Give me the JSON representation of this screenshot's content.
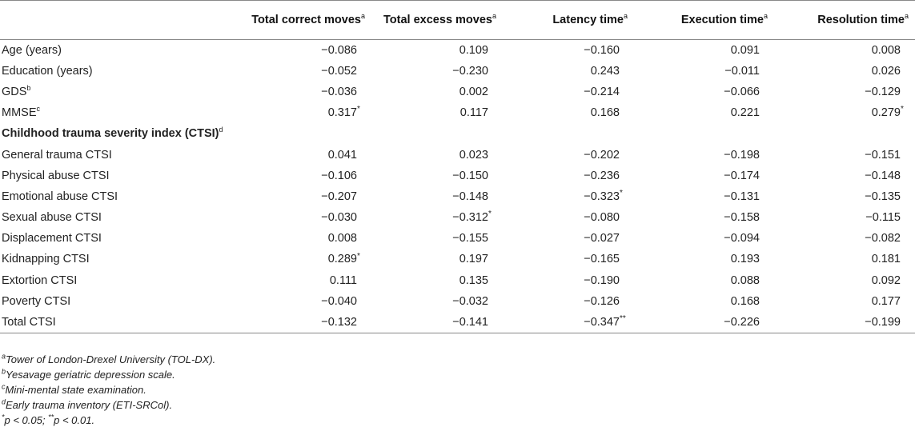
{
  "headers": [
    {
      "text": "",
      "sup": ""
    },
    {
      "text": "Total correct moves",
      "sup": "a"
    },
    {
      "text": "Total excess moves",
      "sup": "a"
    },
    {
      "text": "Latency time",
      "sup": "a"
    },
    {
      "text": "Execution time",
      "sup": "a"
    },
    {
      "text": "Resolution time",
      "sup": "a"
    }
  ],
  "rows": [
    {
      "label": "Age (years)",
      "sup": "",
      "cells": [
        [
          "−0.086",
          ""
        ],
        [
          "0.109",
          ""
        ],
        [
          "−0.160",
          ""
        ],
        [
          "0.091",
          ""
        ],
        [
          "0.008",
          ""
        ]
      ]
    },
    {
      "label": "Education (years)",
      "sup": "",
      "cells": [
        [
          "−0.052",
          ""
        ],
        [
          "−0.230",
          ""
        ],
        [
          "0.243",
          ""
        ],
        [
          "−0.011",
          ""
        ],
        [
          "0.026",
          ""
        ]
      ]
    },
    {
      "label": "GDS",
      "sup": "b",
      "cells": [
        [
          "−0.036",
          ""
        ],
        [
          "0.002",
          ""
        ],
        [
          "−0.214",
          ""
        ],
        [
          "−0.066",
          ""
        ],
        [
          "−0.129",
          ""
        ]
      ]
    },
    {
      "label": "MMSE",
      "sup": "c",
      "cells": [
        [
          "0.317",
          "*"
        ],
        [
          "0.117",
          ""
        ],
        [
          "0.168",
          ""
        ],
        [
          "0.221",
          ""
        ],
        [
          "0.279",
          "*"
        ]
      ]
    },
    {
      "label": "Childhood trauma severity index (CTSI)",
      "sup": "d",
      "section": true,
      "cells": [
        [
          "",
          ""
        ],
        [
          "",
          ""
        ],
        [
          "",
          ""
        ],
        [
          "",
          ""
        ],
        [
          "",
          ""
        ]
      ]
    },
    {
      "label": "General trauma CTSI",
      "sup": "",
      "cells": [
        [
          "0.041",
          ""
        ],
        [
          "0.023",
          ""
        ],
        [
          "−0.202",
          ""
        ],
        [
          "−0.198",
          ""
        ],
        [
          "−0.151",
          ""
        ]
      ]
    },
    {
      "label": "Physical abuse CTSI",
      "sup": "",
      "cells": [
        [
          "−0.106",
          ""
        ],
        [
          "−0.150",
          ""
        ],
        [
          "−0.236",
          ""
        ],
        [
          "−0.174",
          ""
        ],
        [
          "−0.148",
          ""
        ]
      ]
    },
    {
      "label": "Emotional abuse CTSI",
      "sup": "",
      "cells": [
        [
          "−0.207",
          ""
        ],
        [
          "−0.148",
          ""
        ],
        [
          "−0.323",
          "*"
        ],
        [
          "−0.131",
          ""
        ],
        [
          "−0.135",
          ""
        ]
      ]
    },
    {
      "label": "Sexual abuse CTSI",
      "sup": "",
      "cells": [
        [
          "−0.030",
          ""
        ],
        [
          "−0.312",
          "*"
        ],
        [
          "−0.080",
          ""
        ],
        [
          "−0.158",
          ""
        ],
        [
          "−0.115",
          ""
        ]
      ]
    },
    {
      "label": "Displacement CTSI",
      "sup": "",
      "cells": [
        [
          "0.008",
          ""
        ],
        [
          "−0.155",
          ""
        ],
        [
          "−0.027",
          ""
        ],
        [
          "−0.094",
          ""
        ],
        [
          "−0.082",
          ""
        ]
      ]
    },
    {
      "label": "Kidnapping CTSI",
      "sup": "",
      "cells": [
        [
          "0.289",
          "*"
        ],
        [
          "0.197",
          ""
        ],
        [
          "−0.165",
          ""
        ],
        [
          "0.193",
          ""
        ],
        [
          "0.181",
          ""
        ]
      ]
    },
    {
      "label": "Extortion CTSI",
      "sup": "",
      "cells": [
        [
          "0.111",
          ""
        ],
        [
          "0.135",
          ""
        ],
        [
          "−0.190",
          ""
        ],
        [
          "0.088",
          ""
        ],
        [
          "0.092",
          ""
        ]
      ]
    },
    {
      "label": "Poverty CTSI",
      "sup": "",
      "cells": [
        [
          "−0.040",
          ""
        ],
        [
          "−0.032",
          ""
        ],
        [
          "−0.126",
          ""
        ],
        [
          "0.168",
          ""
        ],
        [
          "0.177",
          ""
        ]
      ]
    },
    {
      "label": "Total CTSI",
      "sup": "",
      "cells": [
        [
          "−0.132",
          ""
        ],
        [
          "−0.141",
          ""
        ],
        [
          "−0.347",
          "**"
        ],
        [
          "−0.226",
          ""
        ],
        [
          "−0.199",
          ""
        ]
      ]
    }
  ],
  "footnotes": [
    {
      "sup": "a",
      "text": "Tower of London-Drexel University (TOL-DX)."
    },
    {
      "sup": "b",
      "text": "Yesavage geriatric depression scale."
    },
    {
      "sup": "c",
      "text": "Mini-mental state examination."
    },
    {
      "sup": "d",
      "text": "Early trauma inventory (ETI-SRCol)."
    }
  ],
  "significance": {
    "s1_mark": "*",
    "s1_text": "p < 0.05; ",
    "s2_mark": "**",
    "s2_text": "p < 0.01."
  }
}
